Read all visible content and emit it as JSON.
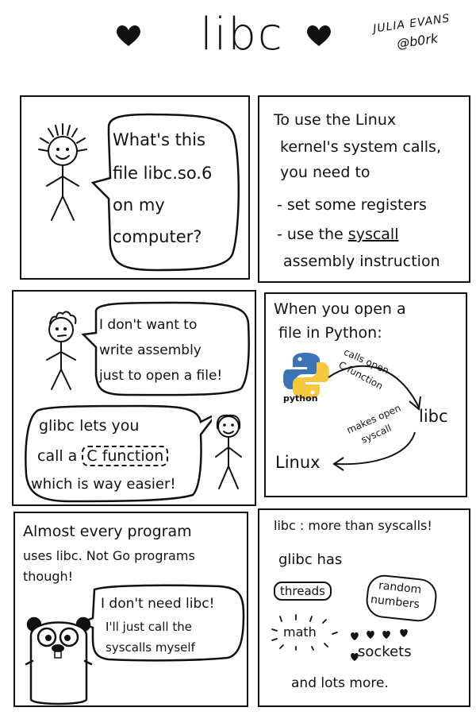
{
  "header": {
    "title": "libc",
    "author_name": "JULIA EVANS",
    "author_handle": "@b0rk"
  },
  "panel1": {
    "speech": [
      "What's this",
      "file libc.so.6",
      "on my",
      "computer?"
    ]
  },
  "panel2": {
    "lines": [
      "To use the Linux",
      "kernel's system calls,",
      "you need to",
      "- set some registers"
    ],
    "line5_prefix": "- use the ",
    "line5_word": "syscall",
    "line6": "assembly instruction"
  },
  "panel3": {
    "speech1": [
      "I don't want to",
      "write assembly",
      "just to open a file!"
    ],
    "speech2_line1": "glibc lets you",
    "speech2_line2_prefix": "call a",
    "speech2_highlight": "C function",
    "speech2_line3": "which is way easier!"
  },
  "panel4": {
    "lines": [
      "When you open a",
      "file in Python:"
    ],
    "python_label": "python",
    "arrow1_label": [
      "calls open",
      "C function"
    ],
    "libc_label": "libc",
    "arrow2_label": [
      "makes open",
      "syscall"
    ],
    "linux_label": "Linux",
    "colors": {
      "python_blue": "#3b73b9",
      "python_yellow": "#f6c93d"
    }
  },
  "panel5": {
    "lines": [
      "Almost every program",
      "uses libc. Not Go programs",
      "though!"
    ],
    "speech": [
      "I don't need libc!",
      "I'll just call the",
      "syscalls myself"
    ],
    "colors": {
      "gopher_body": "#ffffff",
      "gopher_tooth": "#ffffff"
    }
  },
  "panel6": {
    "title": "libc : more than syscalls!",
    "subtitle": "glibc has",
    "threads": "threads",
    "random": [
      "random",
      "numbers"
    ],
    "math": "math",
    "sockets": "sockets",
    "footer": "and lots more."
  }
}
